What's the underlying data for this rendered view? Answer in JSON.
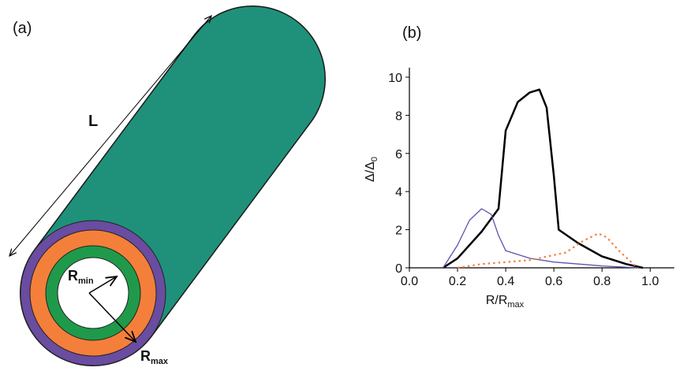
{
  "panel_a": {
    "label": "(a)",
    "length_label": "L",
    "r_min": {
      "base": "R",
      "sub": "min"
    },
    "r_max": {
      "base": "R",
      "sub": "max"
    }
  },
  "chart_data": {
    "type": "line",
    "panel_label": "(b)",
    "x_label": {
      "base": "R/R",
      "sub": "max"
    },
    "y_label": {
      "base": "Δ/Δ",
      "sub": "0"
    },
    "xlim": [
      0,
      1.1
    ],
    "ylim": [
      0,
      10.5
    ],
    "xticks": [
      {
        "value": 0,
        "label": "0.0"
      },
      0.2,
      0.4,
      0.6,
      0.8,
      {
        "value": 1,
        "label": "1.0"
      }
    ],
    "yticks": [
      0,
      2,
      4,
      6,
      8,
      10
    ],
    "series": [
      {
        "color": "#000000",
        "style": "solid",
        "width": 2.5,
        "x": [
          0.14,
          0.2,
          0.3,
          0.37,
          0.4,
          0.45,
          0.5,
          0.54,
          0.57,
          0.6,
          0.62,
          0.7,
          0.8,
          0.9,
          0.97
        ],
        "values": [
          0,
          0.5,
          1.9,
          3.1,
          7.2,
          8.7,
          9.2,
          9.35,
          8.4,
          4.8,
          2.0,
          1.3,
          0.6,
          0.2,
          0
        ]
      },
      {
        "color": "#5a52b0",
        "style": "solid",
        "width": 1.3,
        "x": [
          0.14,
          0.2,
          0.25,
          0.3,
          0.34,
          0.37,
          0.4,
          0.5,
          0.6,
          0.8,
          0.95
        ],
        "values": [
          0,
          1.2,
          2.5,
          3.1,
          2.8,
          1.7,
          0.9,
          0.5,
          0.3,
          0.1,
          0
        ]
      },
      {
        "color": "#f47f3a",
        "style": "dotted",
        "width": 2.2,
        "x": [
          0.2,
          0.3,
          0.5,
          0.65,
          0.72,
          0.785,
          0.82,
          0.87,
          0.93,
          0.95
        ],
        "values": [
          0,
          0.2,
          0.4,
          0.8,
          1.4,
          1.8,
          1.6,
          0.9,
          0.2,
          0
        ]
      }
    ]
  }
}
